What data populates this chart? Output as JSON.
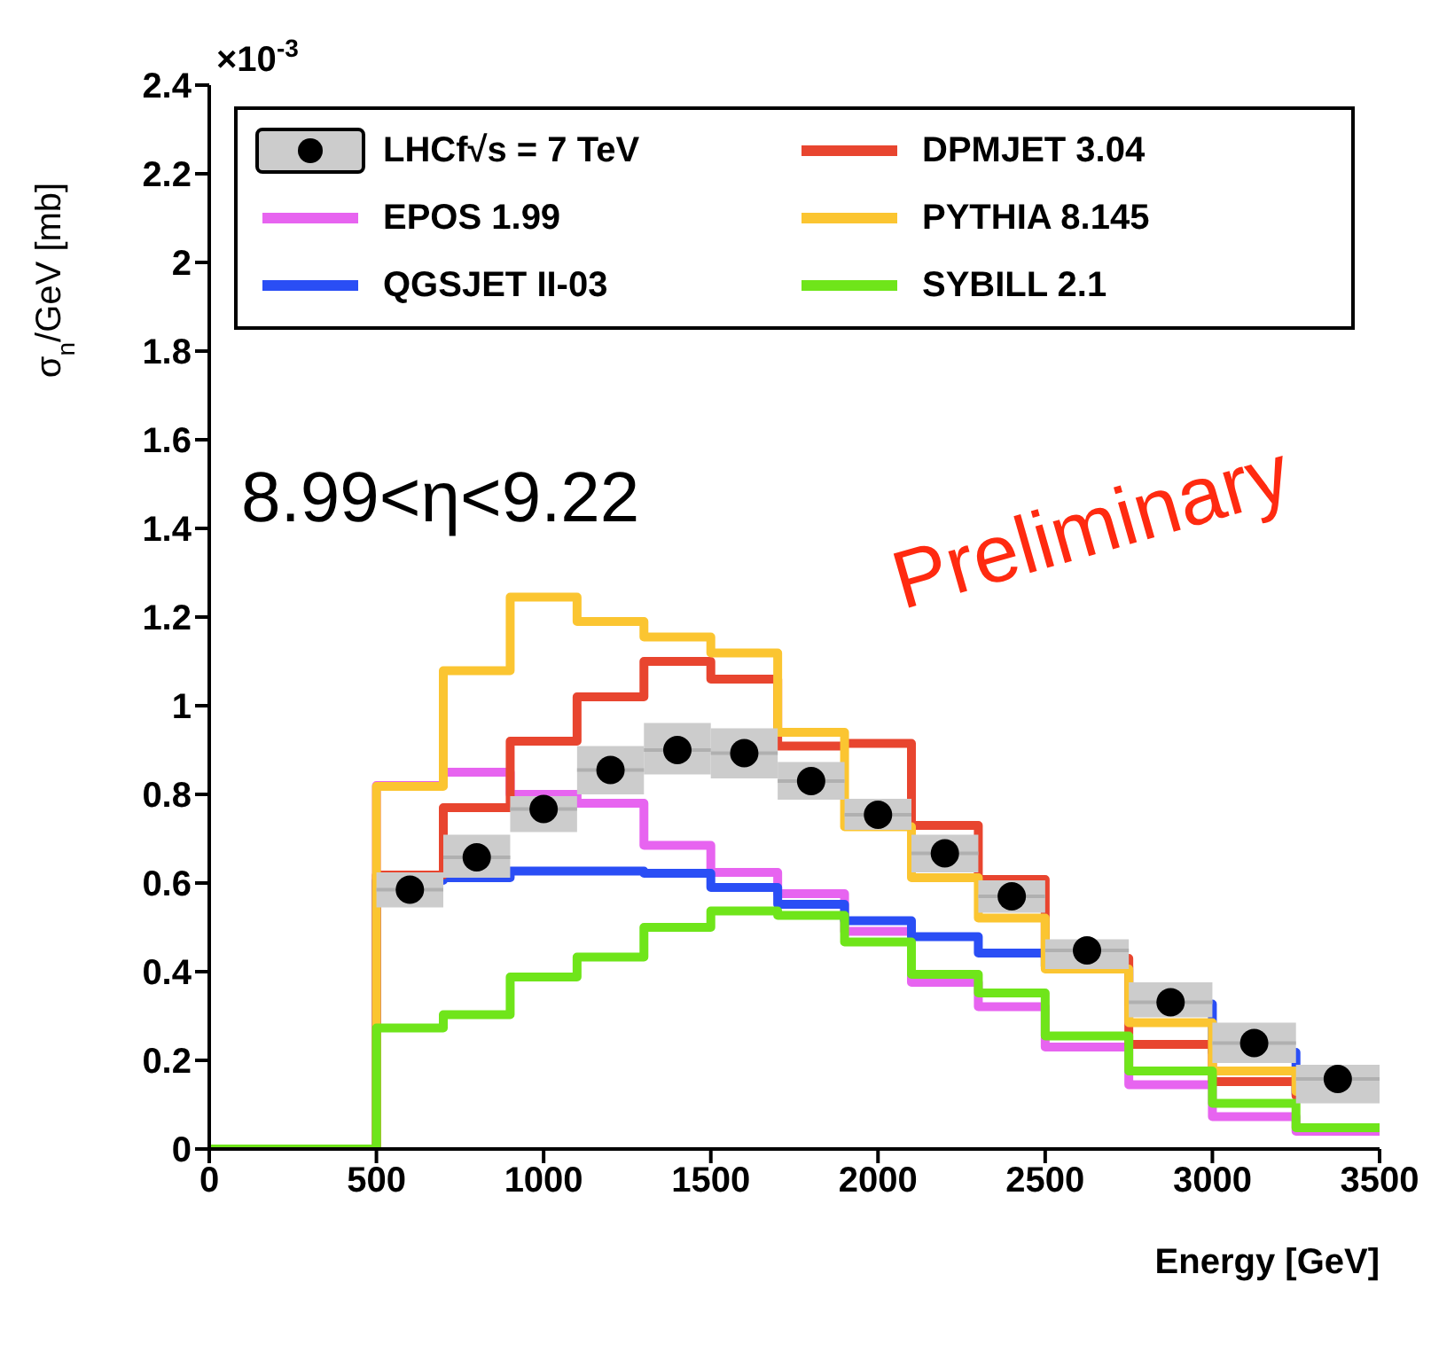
{
  "chart_data": {
    "type": "histogram",
    "xlabel": "Energy [GeV]",
    "ylabel": "σ$_{n}$/GeV [mb]",
    "annotations": [
      "×10$^{-3}$",
      "8.99<η<9.22",
      "Preliminary"
    ],
    "bins": [
      0,
      500,
      700,
      900,
      1100,
      1300,
      1500,
      1700,
      1900,
      2100,
      2300,
      2500,
      2750,
      3000,
      3250,
      3500
    ],
    "xlim": [
      0,
      3500
    ],
    "xticks": [
      0,
      500,
      1000,
      1500,
      2000,
      2500,
      3000,
      3500
    ],
    "ylim": [
      0,
      2.4
    ],
    "yticks": [
      0,
      0.2,
      0.4,
      0.6,
      0.8,
      1,
      1.2,
      1.4,
      1.6,
      1.8,
      2,
      2.2,
      2.4
    ],
    "legend": "top",
    "grid": false,
    "series": [
      {
        "name": "LHCf√s = 7 TeV",
        "type": "scatter",
        "marker": "circle",
        "color": "#000000",
        "x": [
          600,
          800,
          1000,
          1200,
          1400,
          1600,
          1800,
          2000,
          2200,
          2400,
          2625,
          2875,
          3125,
          3375
        ],
        "values": [
          0.585,
          0.658,
          0.767,
          0.855,
          0.9,
          0.893,
          0.83,
          0.754,
          0.667,
          0.57,
          0.448,
          0.331,
          0.239,
          0.158
        ],
        "errors": [
          [
            0.545,
            0.624
          ],
          [
            0.612,
            0.709
          ],
          [
            0.715,
            0.796
          ],
          [
            0.8,
            0.909
          ],
          [
            0.845,
            0.961
          ],
          [
            0.836,
            0.949
          ],
          [
            0.788,
            0.873
          ],
          [
            0.72,
            0.79
          ],
          [
            0.624,
            0.709
          ],
          [
            0.533,
            0.606
          ],
          [
            0.406,
            0.473
          ],
          [
            0.297,
            0.376
          ],
          [
            0.194,
            0.285
          ],
          [
            0.103,
            0.19
          ]
        ],
        "xerrors": [
          100,
          100,
          100,
          100,
          100,
          100,
          100,
          100,
          100,
          100,
          125,
          125,
          125,
          125
        ]
      },
      {
        "name": "EPOS 1.99",
        "color": "#e764f0",
        "values": [
          0,
          0.82,
          0.85,
          0.8,
          0.78,
          0.685,
          0.624,
          0.576,
          0.491,
          0.376,
          0.321,
          0.23,
          0.145,
          0.073,
          0.04
        ]
      },
      {
        "name": "QGSJET II-03",
        "color": "#2a4ef5",
        "values": [
          0,
          0.606,
          0.612,
          0.627,
          0.627,
          0.622,
          0.59,
          0.552,
          0.515,
          0.479,
          0.442,
          0.412,
          0.327,
          0.218,
          0.125
        ]
      },
      {
        "name": "DPMJET 3.04",
        "color": "#e8452f",
        "values": [
          0,
          0.618,
          0.77,
          0.92,
          1.02,
          1.1,
          1.06,
          0.909,
          0.915,
          0.73,
          0.608,
          0.43,
          0.236,
          0.152,
          0.12
        ]
      },
      {
        "name": "PYTHIA 8.145",
        "color": "#fbc531",
        "values": [
          0,
          0.818,
          1.079,
          1.245,
          1.19,
          1.155,
          1.119,
          0.94,
          0.727,
          0.612,
          0.521,
          0.406,
          0.285,
          0.176,
          0.13
        ]
      },
      {
        "name": "SYBILL 2.1",
        "color": "#6fe51a",
        "values": [
          0,
          0.273,
          0.303,
          0.388,
          0.433,
          0.5,
          0.537,
          0.527,
          0.467,
          0.394,
          0.352,
          0.255,
          0.176,
          0.103,
          0.048
        ]
      }
    ]
  }
}
